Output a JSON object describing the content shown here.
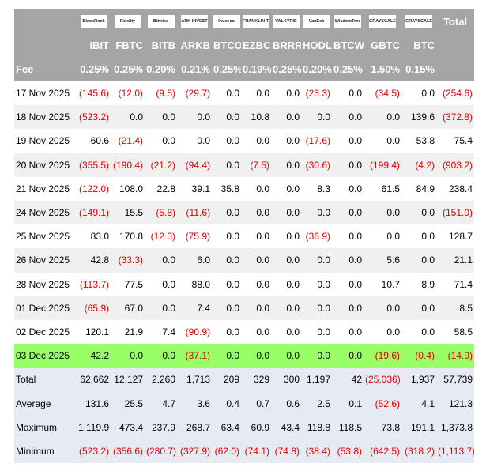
{
  "header": {
    "logos": [
      "BlackRock",
      "Fidelity",
      "Bitwise",
      "ARK INVEST",
      "Invesco",
      "FRANKLIN TEMPLETON",
      "VALKYRIE",
      "VanEck",
      "WisdomTree",
      "GRAYSCALE",
      "GRAYSCALE"
    ],
    "total_label": "Total"
  },
  "table": {
    "columns": [
      "IBIT",
      "FBTC",
      "BITB",
      "ARKB",
      "BTCO",
      "EZBC",
      "BRRR",
      "HODL",
      "BTCW",
      "GBTC",
      "BTC"
    ],
    "fee_label": "Fee",
    "fees": [
      "0.25%",
      "0.25%",
      "0.20%",
      "0.21%",
      "0.25%",
      "0.19%",
      "0.25%",
      "0.20%",
      "0.25%",
      "1.50%",
      "0.15%"
    ],
    "rows": [
      {
        "label": "17 Nov 2025",
        "values": [
          "(145.6)",
          "(12.0)",
          "(9.5)",
          "(29.7)",
          "0.0",
          "0.0",
          "0.0",
          "(23.3)",
          "0.0",
          "(34.5)",
          "0.0",
          "(254.6)"
        ]
      },
      {
        "label": "18 Nov 2025",
        "values": [
          "(523.2)",
          "0.0",
          "0.0",
          "0.0",
          "0.0",
          "10.8",
          "0.0",
          "0.0",
          "0.0",
          "0.0",
          "139.6",
          "(372.8)"
        ]
      },
      {
        "label": "19 Nov 2025",
        "values": [
          "60.6",
          "(21.4)",
          "0.0",
          "0.0",
          "0.0",
          "0.0",
          "0.0",
          "(17.6)",
          "0.0",
          "0.0",
          "53.8",
          "75.4"
        ]
      },
      {
        "label": "20 Nov 2025",
        "values": [
          "(355.5)",
          "(190.4)",
          "(21.2)",
          "(94.4)",
          "0.0",
          "(7.5)",
          "0.0",
          "(30.6)",
          "0.0",
          "(199.4)",
          "(4.2)",
          "(903.2)"
        ]
      },
      {
        "label": "21 Nov 2025",
        "values": [
          "(122.0)",
          "108.0",
          "22.8",
          "39.1",
          "35.8",
          "0.0",
          "0.0",
          "8.3",
          "0.0",
          "61.5",
          "84.9",
          "238.4"
        ]
      },
      {
        "label": "24 Nov 2025",
        "values": [
          "(149.1)",
          "15.5",
          "(5.8)",
          "(11.6)",
          "0.0",
          "0.0",
          "0.0",
          "0.0",
          "0.0",
          "0.0",
          "0.0",
          "(151.0)"
        ]
      },
      {
        "label": "25 Nov 2025",
        "values": [
          "83.0",
          "170.8",
          "(12.3)",
          "(75.9)",
          "0.0",
          "0.0",
          "0.0",
          "(36.9)",
          "0.0",
          "0.0",
          "0.0",
          "128.7"
        ]
      },
      {
        "label": "26 Nov 2025",
        "values": [
          "42.8",
          "(33.3)",
          "0.0",
          "6.0",
          "0.0",
          "0.0",
          "0.0",
          "0.0",
          "0.0",
          "5.6",
          "0.0",
          "21.1"
        ]
      },
      {
        "label": "28 Nov 2025",
        "values": [
          "(113.7)",
          "77.5",
          "0.0",
          "88.0",
          "0.0",
          "0.0",
          "0.0",
          "0.0",
          "0.0",
          "10.7",
          "8.9",
          "71.4"
        ]
      },
      {
        "label": "01 Dec 2025",
        "values": [
          "(65.9)",
          "67.0",
          "0.0",
          "7.4",
          "0.0",
          "0.0",
          "0.0",
          "0.0",
          "0.0",
          "0.0",
          "0.0",
          "8.5"
        ]
      },
      {
        "label": "02 Dec 2025",
        "values": [
          "120.1",
          "21.9",
          "7.4",
          "(90.9)",
          "0.0",
          "0.0",
          "0.0",
          "0.0",
          "0.0",
          "0.0",
          "0.0",
          "58.5"
        ]
      },
      {
        "label": "03 Dec 2025",
        "values": [
          "42.2",
          "0.0",
          "0.0",
          "(37.1)",
          "0.0",
          "0.0",
          "0.0",
          "0.0",
          "0.0",
          "(19.6)",
          "(0.4)",
          "(14.9)"
        ]
      }
    ],
    "summary": [
      {
        "label": "Total",
        "values": [
          "62,662",
          "12,127",
          "2,260",
          "1,713",
          "209",
          "329",
          "300",
          "1,197",
          "42",
          "(25,036)",
          "1,937",
          "57,739"
        ]
      },
      {
        "label": "Average",
        "values": [
          "131.6",
          "25.5",
          "4.7",
          "3.6",
          "0.4",
          "0.7",
          "0.6",
          "2.5",
          "0.1",
          "(52.6)",
          "4.1",
          "121.3"
        ]
      },
      {
        "label": "Maximum",
        "values": [
          "1,119.9",
          "473.4",
          "237.9",
          "268.7",
          "63.4",
          "60.9",
          "43.4",
          "118.8",
          "118.5",
          "73.8",
          "191.1",
          "1,373.8"
        ]
      },
      {
        "label": "Minimum",
        "values": [
          "(523.2)",
          "(356.6)",
          "(280.7)",
          "(327.9)",
          "(62.0)",
          "(74.1)",
          "(74.8)",
          "(38.4)",
          "(53.8)",
          "(642.5)",
          "(318.2)",
          "(1,113.7)"
        ]
      }
    ]
  }
}
